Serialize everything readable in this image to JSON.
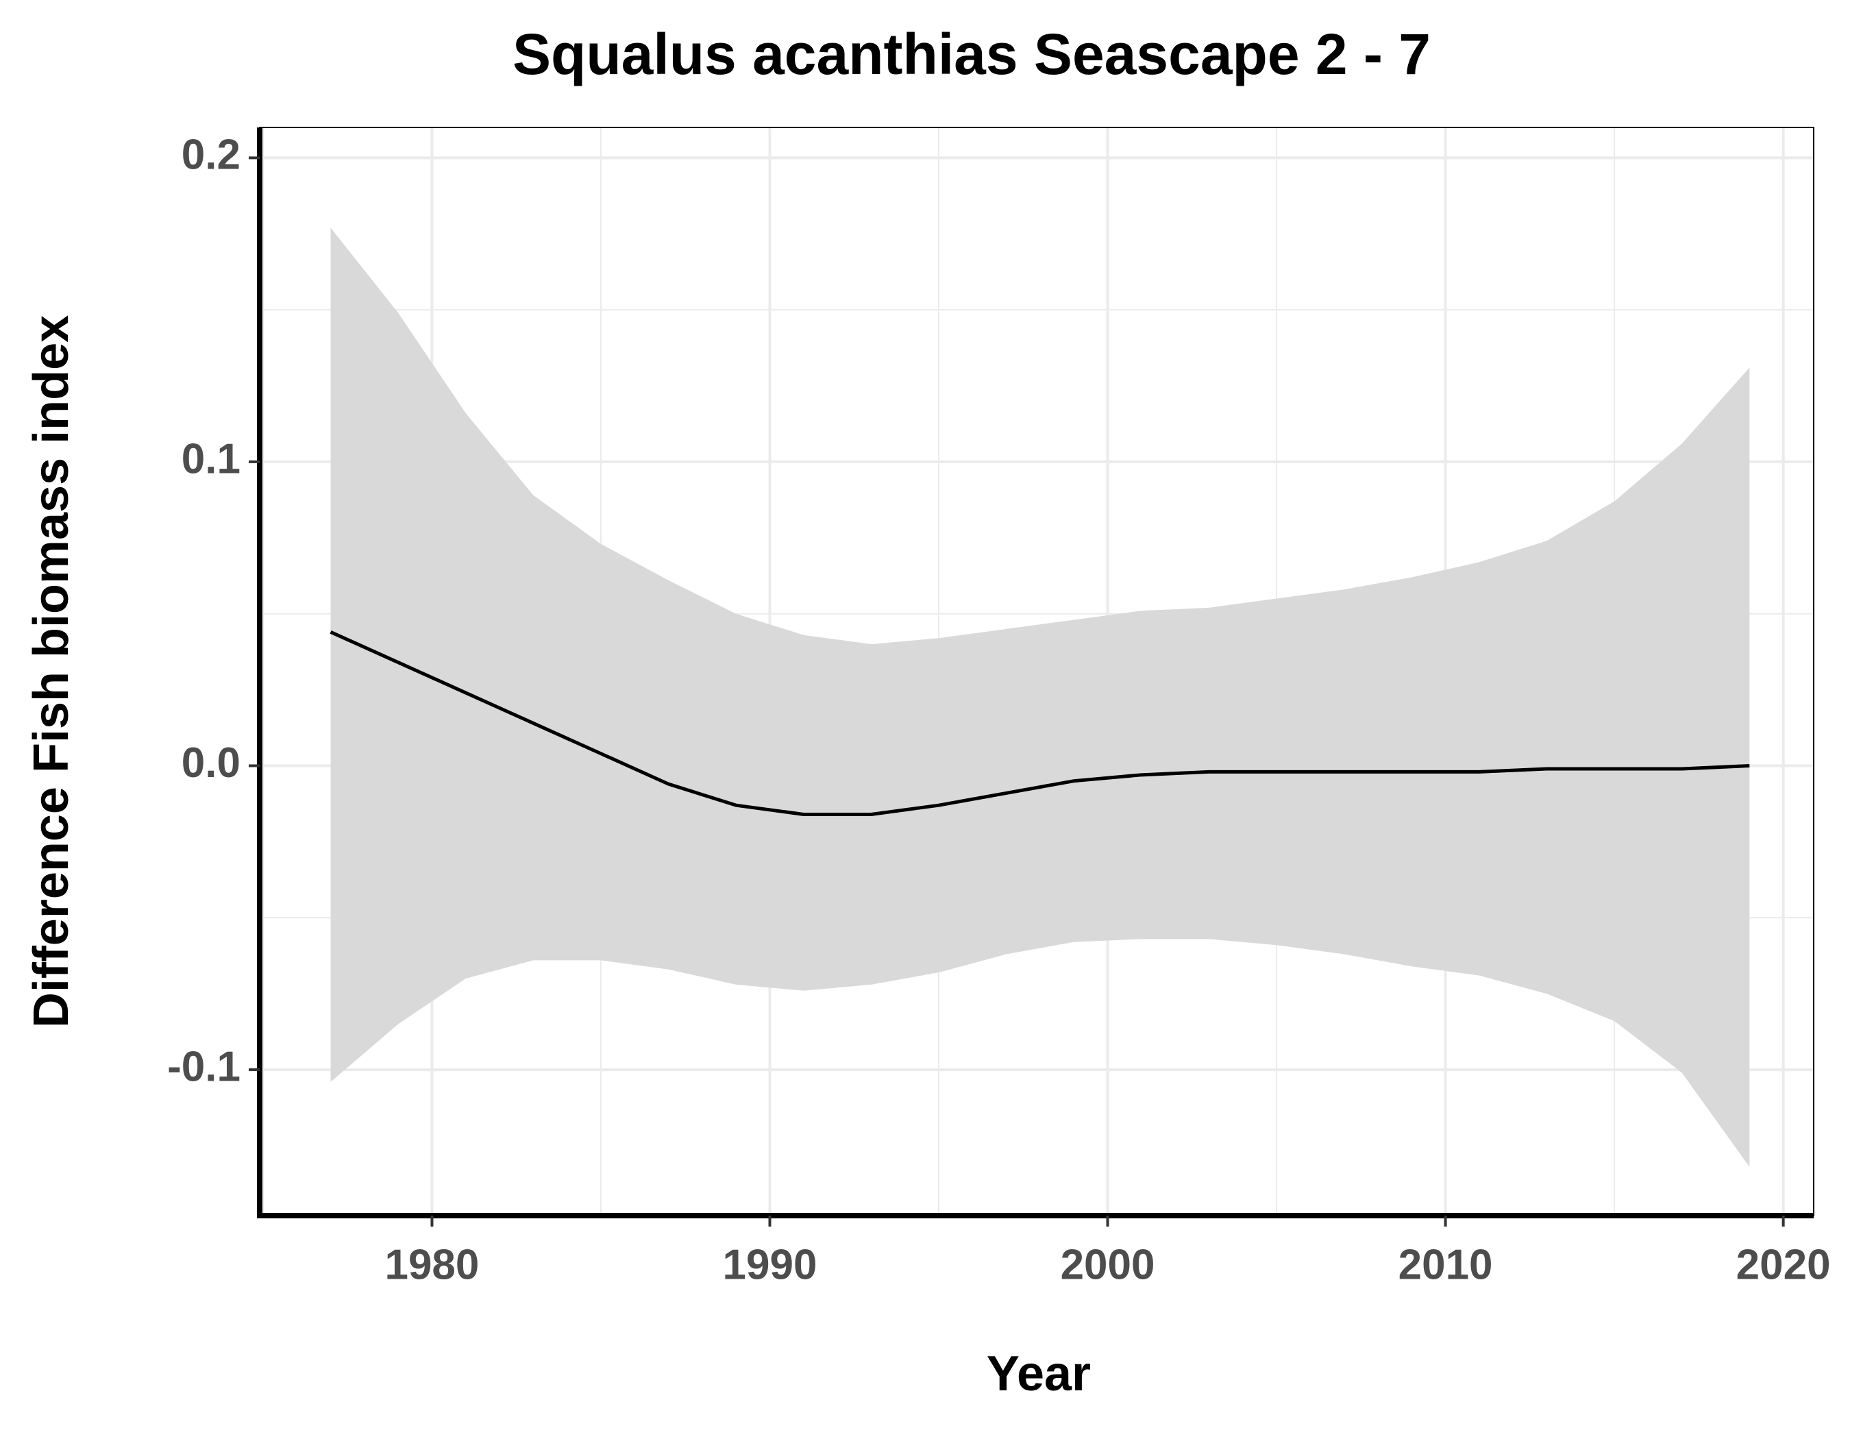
{
  "chart_data": {
    "type": "line",
    "title": "Squalus acanthias Seascape 2 - 7",
    "x_label": "Year",
    "y_label": "Difference Fish biomass index",
    "x": [
      1977,
      1979,
      1981,
      1983,
      1985,
      1987,
      1989,
      1991,
      1993,
      1995,
      1997,
      1999,
      2001,
      2003,
      2005,
      2007,
      2009,
      2011,
      2013,
      2015,
      2017,
      2019
    ],
    "values": [
      0.044,
      0.034,
      0.024,
      0.014,
      0.004,
      -0.006,
      -0.013,
      -0.016,
      -0.016,
      -0.013,
      -0.009,
      -0.005,
      -0.003,
      -0.002,
      -0.002,
      -0.002,
      -0.002,
      -0.002,
      -0.001,
      -0.001,
      -0.001,
      0.0
    ],
    "upper": [
      0.177,
      0.149,
      0.116,
      0.089,
      0.073,
      0.061,
      0.05,
      0.043,
      0.04,
      0.042,
      0.045,
      0.048,
      0.051,
      0.052,
      0.055,
      0.058,
      0.062,
      0.067,
      0.074,
      0.087,
      0.106,
      0.131
    ],
    "lower": [
      -0.104,
      -0.085,
      -0.07,
      -0.064,
      -0.064,
      -0.067,
      -0.072,
      -0.074,
      -0.072,
      -0.068,
      -0.062,
      -0.058,
      -0.057,
      -0.057,
      -0.059,
      -0.062,
      -0.066,
      -0.069,
      -0.075,
      -0.084,
      -0.101,
      -0.132
    ],
    "color": "#000000",
    "band_color": "#d9d9d9",
    "xlim": [
      1974.9,
      2020.9
    ],
    "ylim": [
      -0.148,
      0.21
    ],
    "xticks": [
      1980,
      1990,
      2000,
      2010,
      2020
    ],
    "yticks": [
      {
        "value": -0.1,
        "label": "-0.1"
      },
      {
        "value": 0,
        "label": "0.0"
      },
      {
        "value": 0.1,
        "label": "0.1"
      },
      {
        "value": 0.2,
        "label": "0.2"
      }
    ],
    "x_minor_ticks": [
      1975,
      1985,
      1995,
      2005,
      2015
    ],
    "y_minor_ticks": [
      -0.05,
      0.05,
      0.15
    ],
    "grid": true
  }
}
